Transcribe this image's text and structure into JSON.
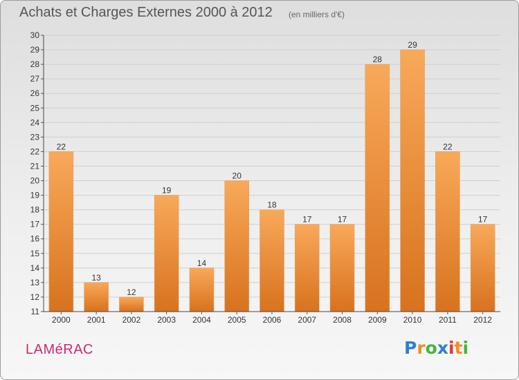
{
  "chart_data": {
    "type": "bar",
    "title": "Achats et Charges Externes 2000 à 2012",
    "subtitle": "(en milliers d'€)",
    "categories": [
      "2000",
      "2001",
      "2002",
      "2003",
      "2004",
      "2005",
      "2006",
      "2007",
      "2008",
      "2009",
      "2010",
      "2011",
      "2012"
    ],
    "values": [
      22,
      13,
      12,
      19,
      14,
      20,
      18,
      17,
      17,
      28,
      29,
      22,
      17
    ],
    "ylim": [
      11,
      30
    ],
    "yticks": [
      11,
      12,
      13,
      14,
      15,
      16,
      17,
      18,
      19,
      20,
      21,
      22,
      23,
      24,
      25,
      26,
      27,
      28,
      29,
      30
    ],
    "grid": true,
    "bar_color_top": "#f8a95a",
    "bar_color_bottom": "#d8721e"
  },
  "commune": "LAMéRAC",
  "logo": {
    "text": "Proxiti",
    "letters": [
      "P",
      "r",
      "o",
      "x",
      "i",
      "t",
      "i"
    ],
    "colors": [
      "#2f7fd0",
      "#f28c1e",
      "#47b43a",
      "#2f7fd0",
      "#e03a2f",
      "#f28c1e",
      "#47b43a"
    ]
  }
}
